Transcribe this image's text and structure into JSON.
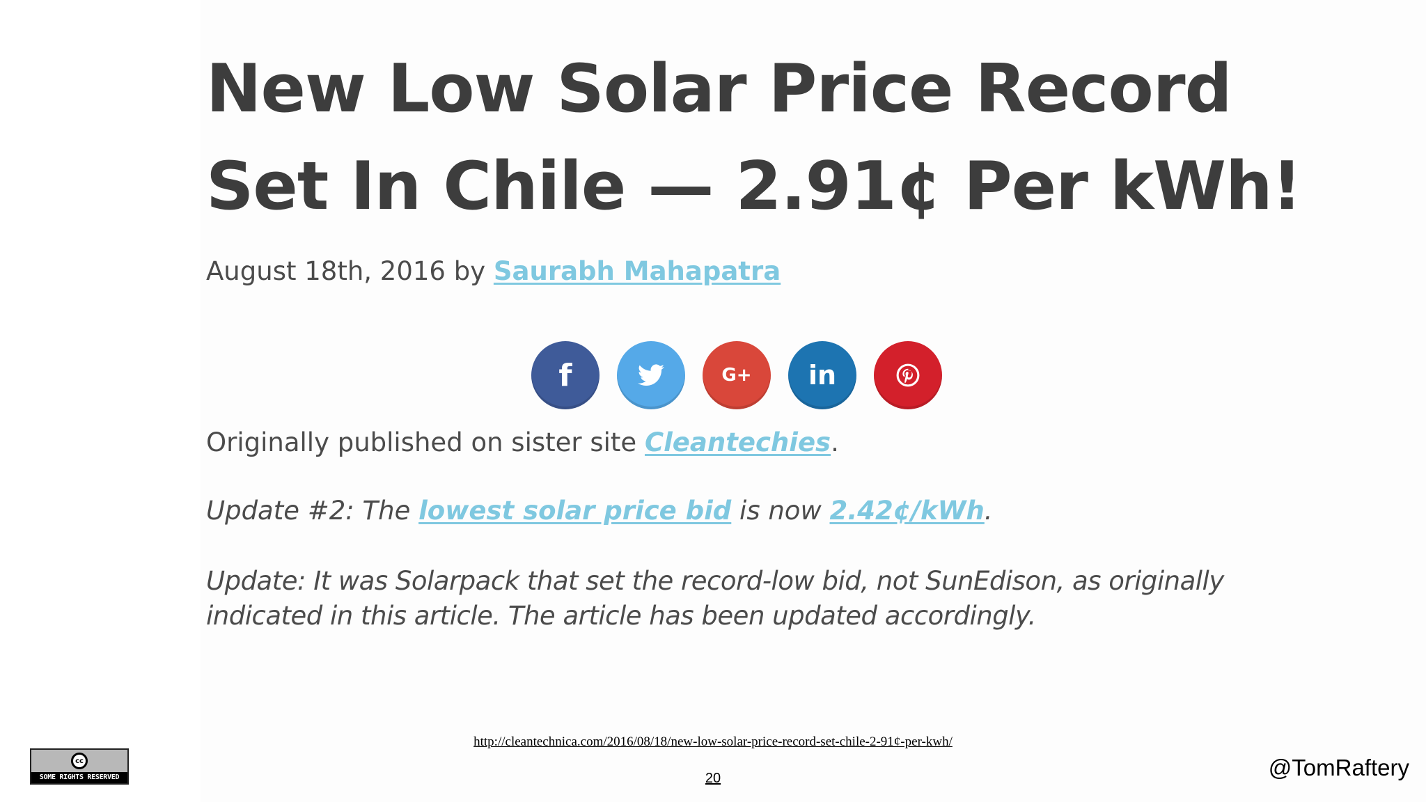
{
  "article": {
    "title_line1": "New Low Solar Price Record",
    "title_line2": "Set In Chile — 2.91¢ Per kWh!",
    "date_prefix": "August 18th, 2016 by ",
    "author": "Saurabh Mahapatra",
    "share_buttons": [
      {
        "name": "facebook",
        "glyph": "f",
        "color": "#3f5b99"
      },
      {
        "name": "twitter",
        "glyph": "twitter-bird",
        "color": "#55a9e8"
      },
      {
        "name": "google-plus",
        "glyph": "G+",
        "color": "#d9473a"
      },
      {
        "name": "linkedin",
        "glyph": "in",
        "color": "#1d74b1"
      },
      {
        "name": "pinterest",
        "glyph": "p",
        "color": "#d3202b"
      }
    ],
    "orig_prefix": "Originally published on sister site ",
    "orig_link": "Cleantechies",
    "orig_suffix": ".",
    "update2_prefix": "Update #2: The ",
    "update2_link1": "lowest solar price bid",
    "update2_mid": " is now ",
    "update2_link2": "2.42¢/kWh",
    "update2_suffix": ".",
    "update1_text": "Update: It was Solarpack that set the record-low bid, not SunEdison, as originally indicated in this article. The article has been updated accordingly."
  },
  "slide": {
    "source_url": "http://cleantechnica.com/2016/08/18/new-low-solar-price-record-set-chile-2-91¢-per-kwh/",
    "page_number": "20",
    "handle": "@TomRaftery",
    "license_logo": "cc",
    "license_text": "SOME RIGHTS RESERVED"
  },
  "colors": {
    "title": "#3d3d3d",
    "body_text": "#4b4b4b",
    "link": "#7fc8e0"
  }
}
